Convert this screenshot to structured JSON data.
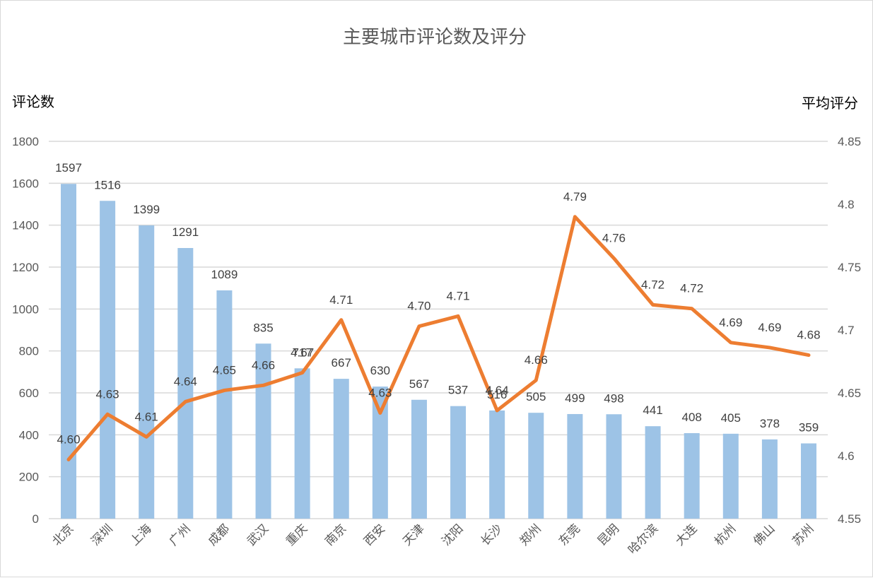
{
  "chart_data": {
    "type": "bar+line",
    "title": "主要城市评论数及评分",
    "xlabel": "",
    "ylabel": "评论数",
    "y2label": "平均评分",
    "ylim": [
      0,
      1800
    ],
    "y2lim": [
      4.55,
      4.85
    ],
    "yticks": [
      "0",
      "200",
      "400",
      "600",
      "800",
      "1000",
      "1200",
      "1400",
      "1600",
      "1800"
    ],
    "y2ticks": [
      "4.55",
      "4.6",
      "4.65",
      "4.7",
      "4.75",
      "4.8",
      "4.85"
    ],
    "grid": true,
    "legend": "none",
    "categories": [
      "北京",
      "深圳",
      "上海",
      "广州",
      "成都",
      "武汉",
      "重庆",
      "南京",
      "西安",
      "天津",
      "沈阳",
      "长沙",
      "郑州",
      "东莞",
      "昆明",
      "哈尔滨",
      "大连",
      "杭州",
      "佛山",
      "苏州"
    ],
    "series": [
      {
        "name": "评论数",
        "type": "bar",
        "axis": "left",
        "color": "#9dc3e6",
        "values": [
          1597,
          1516,
          1399,
          1291,
          1089,
          835,
          717,
          667,
          630,
          567,
          537,
          516,
          505,
          499,
          498,
          441,
          408,
          405,
          378,
          359
        ],
        "labels": [
          "1597",
          "1516",
          "1399",
          "1291",
          "1089",
          "835",
          "717",
          "667",
          "630",
          "567",
          "537",
          "516",
          "505",
          "499",
          "498",
          "441",
          "408",
          "405",
          "378",
          "359"
        ]
      },
      {
        "name": "平均评分",
        "type": "line",
        "axis": "right",
        "color": "#ed7d31",
        "values": [
          4.597,
          4.633,
          4.615,
          4.643,
          4.652,
          4.656,
          4.666,
          4.708,
          4.634,
          4.703,
          4.711,
          4.636,
          4.66,
          4.79,
          4.757,
          4.72,
          4.717,
          4.69,
          4.686,
          4.68
        ],
        "labels": [
          "4.60",
          "4.63",
          "4.61",
          "4.64",
          "4.65",
          "4.66",
          "4.67",
          "4.71",
          "4.63",
          "4.70",
          "4.71",
          "4.64",
          "4.66",
          "4.79",
          "4.76",
          "4.72",
          "4.72",
          "4.69",
          "4.69",
          "4.68"
        ]
      }
    ]
  }
}
